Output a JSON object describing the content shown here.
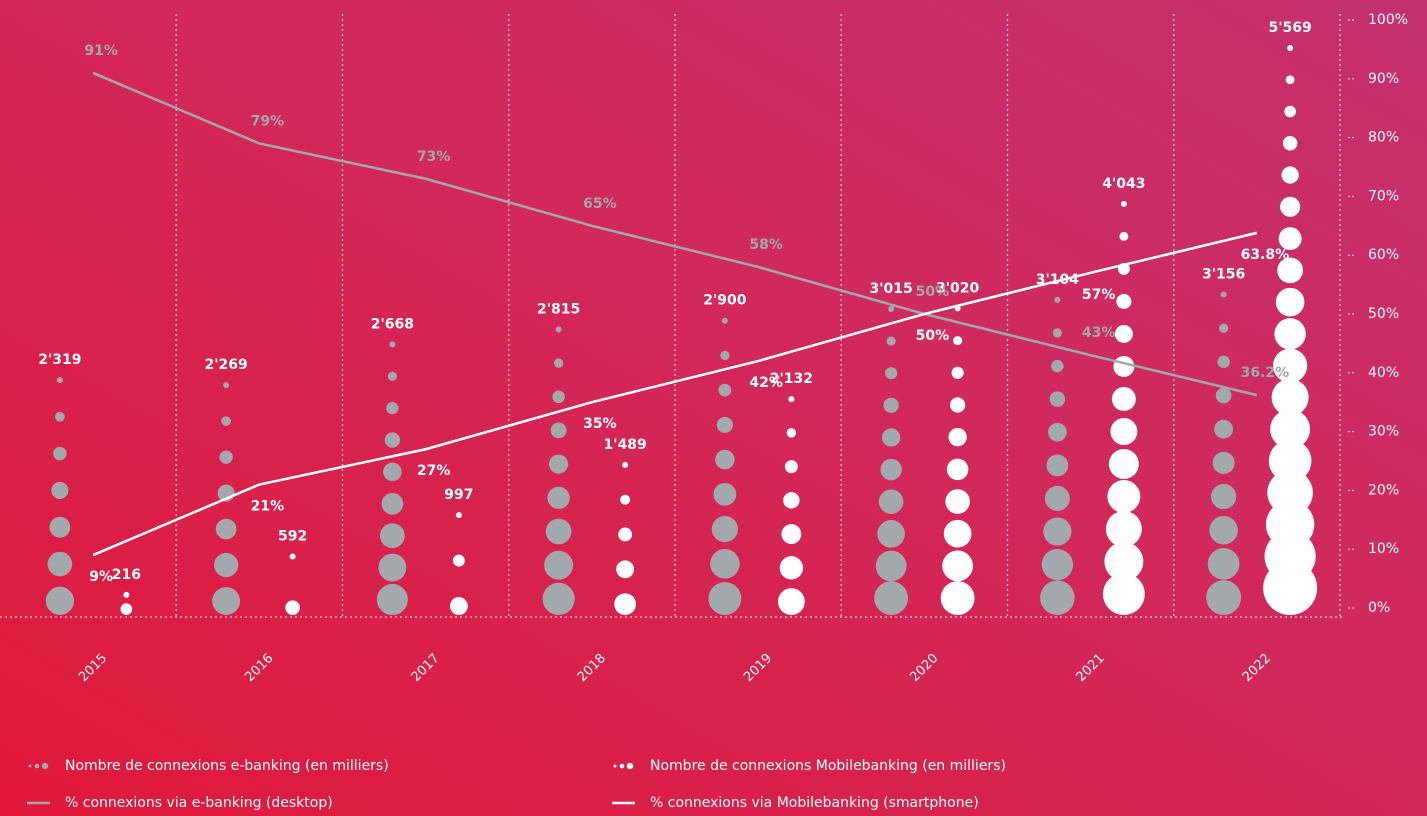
{
  "chart_data": {
    "type": "combo",
    "categories": [
      "2015",
      "2016",
      "2017",
      "2018",
      "2019",
      "2020",
      "2021",
      "2022"
    ],
    "ylim": [
      0,
      100
    ],
    "yticks": [
      {
        "value": 0,
        "label": "0%"
      },
      {
        "value": 10,
        "label": "10%"
      },
      {
        "value": 20,
        "label": "20%"
      },
      {
        "value": 30,
        "label": "30%"
      },
      {
        "value": 40,
        "label": "40%"
      },
      {
        "value": 50,
        "label": "50%"
      },
      {
        "value": 60,
        "label": "60%"
      },
      {
        "value": 70,
        "label": "70%"
      },
      {
        "value": 80,
        "label": "80%"
      },
      {
        "value": 90,
        "label": "90%"
      },
      {
        "value": 100,
        "label": "100%"
      }
    ],
    "series": [
      {
        "name": "Nombre de connexions e-banking (en milliers)",
        "type": "dots",
        "color": "#a3a8ac",
        "values": [
          2319,
          2269,
          2668,
          2815,
          2900,
          3015,
          3104,
          3156
        ],
        "value_labels": [
          "2'319",
          "2'269",
          "2'668",
          "2'815",
          "2'900",
          "3'015",
          "3'104",
          "3'156"
        ]
      },
      {
        "name": "Nombre de connexions Mobilebanking (en milliers)",
        "type": "dots",
        "color": "#ffffff",
        "values": [
          216,
          592,
          997,
          1489,
          2132,
          3020,
          4043,
          5569
        ],
        "value_labels": [
          "216",
          "592",
          "997",
          "1'489",
          "2'132",
          "3'020",
          "4'043",
          "5'569"
        ]
      },
      {
        "name": "% connexions via e-banking (desktop)",
        "type": "line",
        "color": "#a3a8ac",
        "values": [
          91,
          79,
          73,
          65,
          58,
          50,
          43,
          36.2
        ],
        "value_labels": [
          "91%",
          "79%",
          "73%",
          "65%",
          "58%",
          "50%",
          "43%",
          "36.2%"
        ]
      },
      {
        "name": "% connexions via Mobilebanking (smartphone)",
        "type": "line",
        "color": "#ffffff",
        "values": [
          9,
          21,
          27,
          35,
          42,
          50,
          57,
          63.8
        ],
        "value_labels": [
          "9%",
          "21%",
          "27%",
          "35%",
          "42%",
          "50%",
          "57%",
          "63.8%"
        ]
      }
    ]
  }
}
